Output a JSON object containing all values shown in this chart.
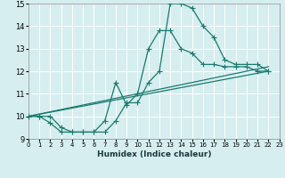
{
  "xlabel": "Humidex (Indice chaleur)",
  "bg_color": "#d6eef0",
  "grid_color": "#ffffff",
  "line_color": "#1a7a6e",
  "xlim": [
    0,
    23
  ],
  "ylim": [
    9,
    15
  ],
  "xticks": [
    0,
    1,
    2,
    3,
    4,
    5,
    6,
    7,
    8,
    9,
    10,
    11,
    12,
    13,
    14,
    15,
    16,
    17,
    18,
    19,
    20,
    21,
    22,
    23
  ],
  "yticks": [
    9,
    10,
    11,
    12,
    13,
    14,
    15
  ],
  "line1_x": [
    0,
    1,
    2,
    3,
    4,
    5,
    6,
    7,
    8,
    9,
    10,
    11,
    12,
    13,
    14,
    15,
    16,
    17,
    18,
    19,
    20,
    21,
    22
  ],
  "line1_y": [
    10.0,
    10.0,
    10.0,
    9.5,
    9.3,
    9.3,
    9.3,
    9.3,
    9.8,
    10.6,
    10.6,
    11.5,
    12.0,
    15.0,
    15.0,
    14.8,
    14.0,
    13.5,
    12.5,
    12.3,
    12.3,
    12.3,
    12.0
  ],
  "line2_x": [
    0,
    1,
    2,
    3,
    4,
    5,
    6,
    7,
    8,
    9,
    10,
    11,
    12,
    13,
    14,
    15,
    16,
    17,
    18,
    19,
    20,
    21,
    22
  ],
  "line2_y": [
    10.0,
    10.0,
    9.7,
    9.3,
    9.3,
    9.3,
    9.3,
    9.8,
    11.5,
    10.5,
    11.0,
    13.0,
    13.8,
    13.8,
    13.0,
    12.8,
    12.3,
    12.3,
    12.2,
    12.2,
    12.2,
    12.0,
    12.0
  ],
  "line3_x": [
    0,
    22
  ],
  "line3_y": [
    10.0,
    12.0
  ],
  "line4_x": [
    0,
    22
  ],
  "line4_y": [
    10.0,
    12.2
  ]
}
